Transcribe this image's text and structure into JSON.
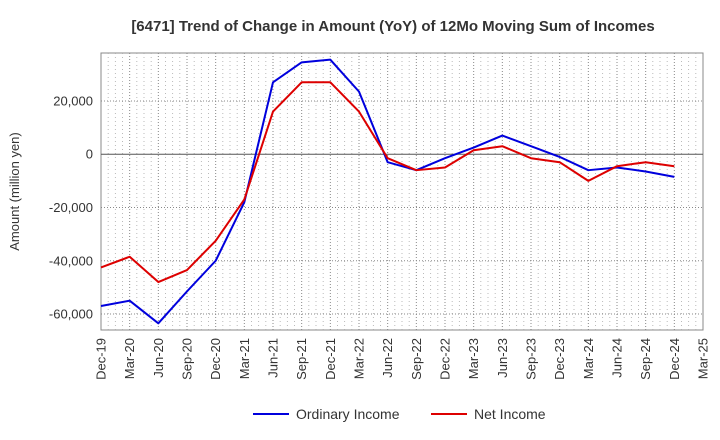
{
  "chart_data": {
    "type": "line",
    "title": "[6471]  Trend of Change in Amount (YoY) of 12Mo Moving Sum of Incomes",
    "xlabel": "",
    "ylabel": "Amount (million yen)",
    "categories": [
      "Dec-19",
      "Mar-20",
      "Jun-20",
      "Sep-20",
      "Dec-20",
      "Mar-21",
      "Jun-21",
      "Sep-21",
      "Dec-21",
      "Mar-22",
      "Jun-22",
      "Sep-22",
      "Dec-22",
      "Mar-23",
      "Jun-23",
      "Sep-23",
      "Dec-23",
      "Mar-24",
      "Jun-24",
      "Sep-24",
      "Dec-24",
      "Mar-25"
    ],
    "ylim": [
      -66000,
      38000
    ],
    "yticks": [
      -60000,
      -40000,
      -20000,
      0,
      20000
    ],
    "ytick_labels": [
      "-60,000",
      "-40,000",
      "-20,000",
      "0",
      "20,000"
    ],
    "grid": true,
    "legend_position": "bottom",
    "series": [
      {
        "name": "Ordinary Income",
        "color": "#0000dd",
        "values": [
          -57000,
          -55000,
          -63500,
          -51500,
          -40000,
          -18000,
          27000,
          34500,
          35500,
          23500,
          -3000,
          -6000,
          -1500,
          2500,
          7000,
          3000,
          -1000,
          -6000,
          -5000,
          -6500,
          -8500,
          null
        ]
      },
      {
        "name": "Net Income",
        "color": "#dd0000",
        "values": [
          -42500,
          -38500,
          -48000,
          -43500,
          -32500,
          -17000,
          16000,
          27000,
          27000,
          16000,
          -1500,
          -6000,
          -5000,
          1500,
          3000,
          -1500,
          -3000,
          -10000,
          -4500,
          -3000,
          -4500,
          null
        ]
      }
    ]
  }
}
